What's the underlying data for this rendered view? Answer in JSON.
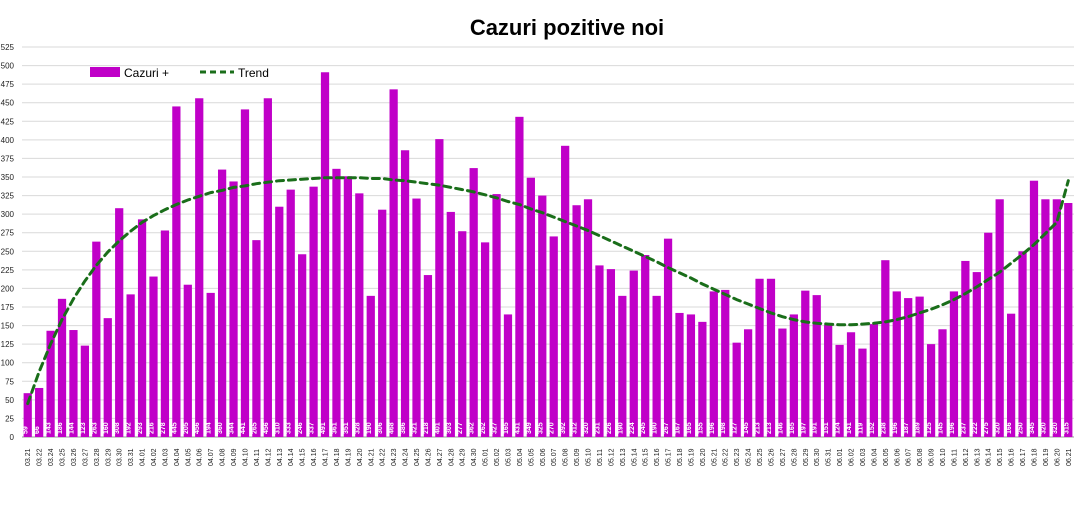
{
  "chart_data": {
    "type": "bar",
    "title": "Cazuri pozitive noi",
    "xlabel": "",
    "ylabel": "",
    "ylim": [
      0,
      525
    ],
    "ytick_step": 25,
    "grid": true,
    "legend": "top-left",
    "colors": {
      "bar": "#c000c8",
      "trend": "#1a6e1a",
      "grid": "#d9d9d9"
    },
    "categories": [
      "03.21",
      "03.22",
      "03.24",
      "03.25",
      "03.26",
      "03.27",
      "03.28",
      "03.29",
      "03.30",
      "03.31",
      "04.01",
      "04.02",
      "04.03",
      "04.04",
      "04.05",
      "04.06",
      "04.07",
      "04.08",
      "04.09",
      "04.10",
      "04.11",
      "04.12",
      "04.13",
      "04.14",
      "04.15",
      "04.16",
      "04.17",
      "04.18",
      "04.19",
      "04.20",
      "04.21",
      "04.22",
      "04.23",
      "04.24",
      "04.25",
      "04.26",
      "04.27",
      "04.28",
      "04.29",
      "04.30",
      "05.01",
      "05.02",
      "05.03",
      "05.04",
      "05.05",
      "05.06",
      "05.07",
      "05.08",
      "05.09",
      "05.10",
      "05.11",
      "05.12",
      "05.13",
      "05.14",
      "05.15",
      "05.16",
      "05.17",
      "05.18",
      "05.19",
      "05.20",
      "05.21",
      "05.22",
      "05.23",
      "05.24",
      "05.25",
      "05.26",
      "05.27",
      "05.28",
      "05.29",
      "05.30",
      "05.31",
      "06.01",
      "06.02",
      "06.03",
      "06.04",
      "06.05",
      "06.06",
      "06.07",
      "06.08",
      "06.09",
      "06.10",
      "06.11",
      "06.12",
      "06.13",
      "06.14",
      "06.15",
      "06.16",
      "06.17",
      "06.18",
      "06.19",
      "06.20",
      "06.21"
    ],
    "series": [
      {
        "name": "Cazuri +",
        "values": [
          59,
          66,
          143,
          186,
          144,
          123,
          263,
          160,
          308,
          192,
          293,
          216,
          278,
          445,
          205,
          456,
          194,
          360,
          344,
          441,
          265,
          456,
          310,
          333,
          246,
          337,
          491,
          361,
          351,
          328,
          190,
          306,
          468,
          386,
          321,
          218,
          401,
          303,
          277,
          362,
          262,
          327,
          165,
          431,
          349,
          325,
          270,
          392,
          312,
          320,
          231,
          226,
          190,
          224,
          245,
          190,
          267,
          167,
          165,
          155,
          196,
          198,
          127,
          145,
          213,
          213,
          146,
          165,
          197,
          191,
          151,
          124,
          141,
          119,
          152,
          238,
          196,
          187,
          189,
          125,
          145,
          196,
          237,
          222,
          275,
          320,
          166,
          250,
          345,
          320,
          320,
          315
        ]
      },
      {
        "name": "Trend",
        "values": [
          45,
          88,
          125,
          158,
          186,
          210,
          231,
          249,
          264,
          277,
          289,
          298,
          306,
          313,
          319,
          324,
          329,
          332,
          336,
          338,
          341,
          343,
          345,
          346,
          347,
          348,
          349,
          349,
          349,
          349,
          348,
          348,
          346,
          345,
          343,
          341,
          339,
          336,
          333,
          330,
          326,
          322,
          317,
          313,
          307,
          302,
          296,
          290,
          284,
          278,
          271,
          264,
          257,
          250,
          243,
          236,
          228,
          221,
          214,
          206,
          199,
          192,
          185,
          179,
          173,
          167,
          162,
          158,
          155,
          153,
          152,
          151,
          151,
          152,
          153,
          155,
          158,
          162,
          167,
          172,
          178,
          185,
          193,
          202,
          212,
          222,
          234,
          246,
          259,
          274,
          289,
          345
        ]
      }
    ]
  }
}
